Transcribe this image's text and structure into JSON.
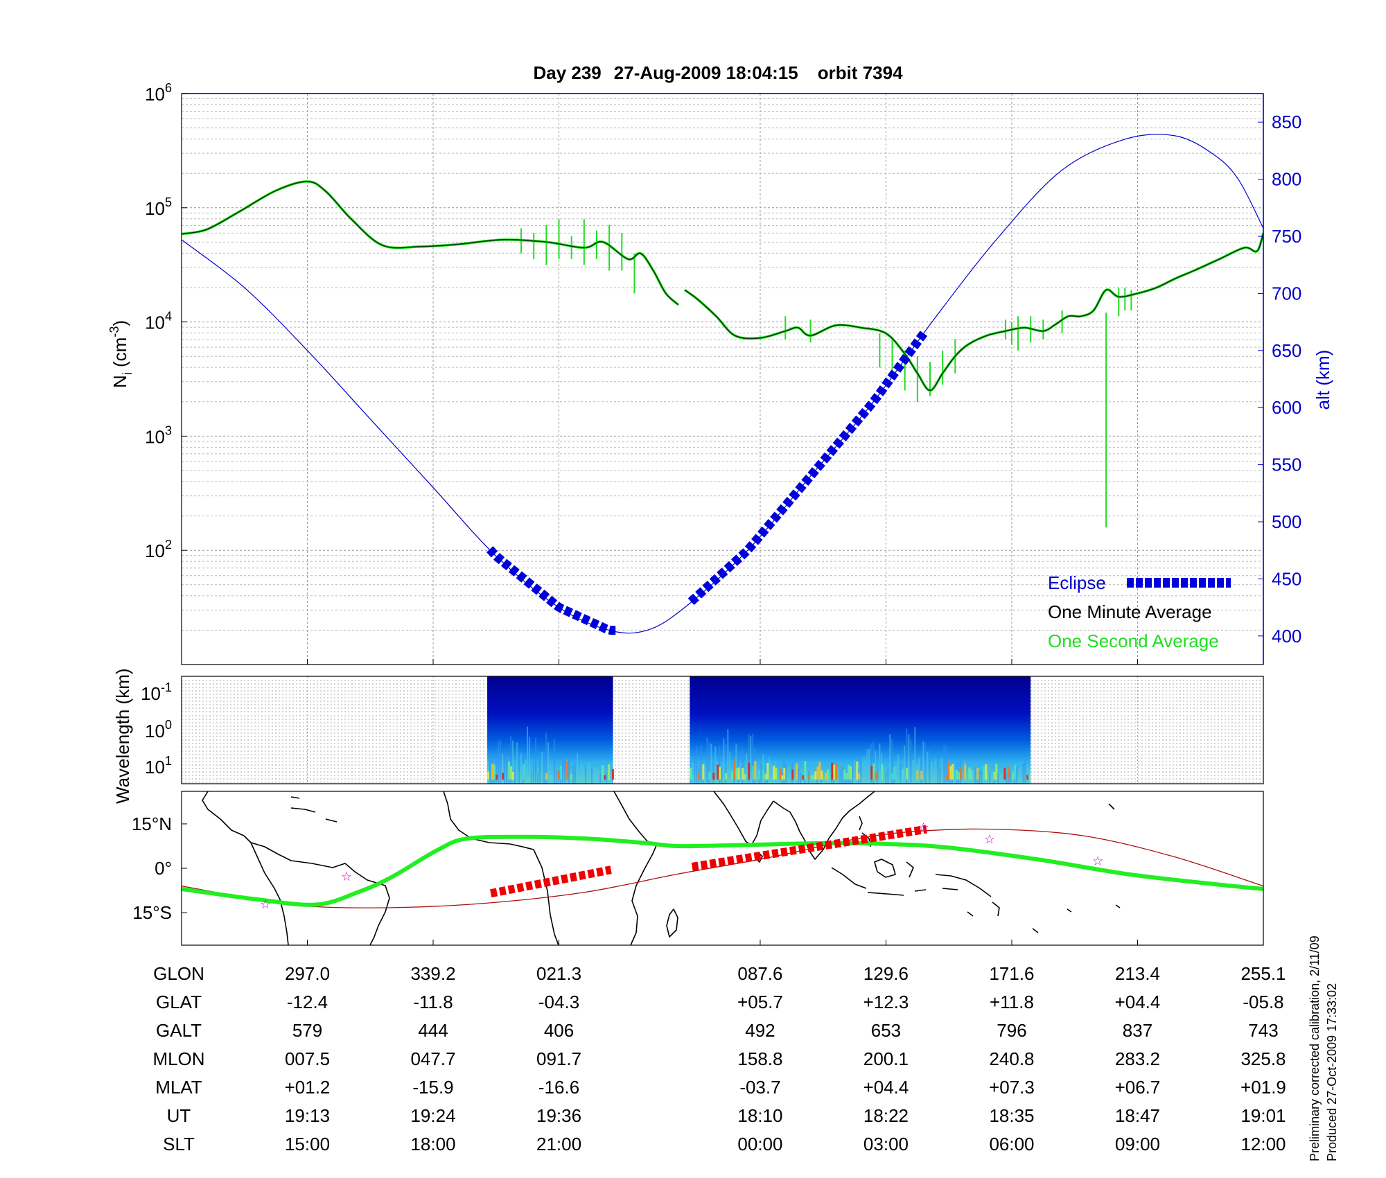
{
  "header": {
    "day": "Day 239",
    "datetime": "27-Aug-2009 18:04:15",
    "orbit": "orbit 7394"
  },
  "colors": {
    "altitude": "#0000cc",
    "one_minute": "#004000",
    "one_second": "#22dd22",
    "eclipse": "#0000dd",
    "track_green": "#22ee22",
    "track_red": "#ee0000",
    "ground_track": "#aa1111",
    "marker": "#cc00cc"
  },
  "chart_data": [
    {
      "id": "density",
      "type": "line",
      "ylabel_main": "N",
      "ylabel_sub": "i",
      "ylabel_unit_pre": " (cm",
      "ylabel_unit_sup": "-3",
      "ylabel_unit_post": ")",
      "yscale": "log",
      "ylim_log10": [
        1,
        6
      ],
      "yticks": [
        {
          "base": "10",
          "exp": "6",
          "log": 6
        },
        {
          "base": "10",
          "exp": "5",
          "log": 5
        },
        {
          "base": "10",
          "exp": "4",
          "log": 4
        },
        {
          "base": "10",
          "exp": "3",
          "log": 3
        },
        {
          "base": "10",
          "exp": "2",
          "log": 2
        }
      ],
      "x_domain": [
        0,
        8.6
      ],
      "y2label": "alt (km)",
      "y2lim": [
        375,
        875
      ],
      "y2ticks": [
        850,
        800,
        750,
        700,
        650,
        600,
        550,
        500,
        450,
        400
      ],
      "legend": [
        "Eclipse",
        "One Minute Average",
        "One Second Average"
      ],
      "legend_position": "bottom-right",
      "one_minute_average": [
        {
          "segment": [
            [
              0.0,
              4.77
            ],
            [
              0.2,
              4.81
            ],
            [
              0.45,
              4.96
            ],
            [
              0.75,
              5.15
            ],
            [
              1.0,
              5.23
            ],
            [
              1.15,
              5.14
            ],
            [
              1.35,
              4.9
            ],
            [
              1.6,
              4.67
            ],
            [
              1.9,
              4.66
            ],
            [
              2.2,
              4.68
            ],
            [
              2.55,
              4.72
            ],
            [
              2.9,
              4.7
            ],
            [
              3.2,
              4.65
            ],
            [
              3.35,
              4.7
            ],
            [
              3.55,
              4.55
            ],
            [
              3.65,
              4.6
            ],
            [
              3.75,
              4.45
            ],
            [
              3.85,
              4.25
            ],
            [
              3.95,
              4.15
            ]
          ]
        },
        {
          "segment": [
            [
              4.0,
              4.28
            ],
            [
              4.1,
              4.2
            ],
            [
              4.25,
              4.05
            ],
            [
              4.4,
              3.88
            ],
            [
              4.6,
              3.86
            ],
            [
              4.8,
              3.92
            ],
            [
              4.9,
              3.95
            ],
            [
              5.0,
              3.88
            ],
            [
              5.2,
              3.97
            ],
            [
              5.4,
              3.95
            ],
            [
              5.6,
              3.9
            ],
            [
              5.75,
              3.72
            ],
            [
              5.85,
              3.55
            ],
            [
              5.95,
              3.4
            ],
            [
              6.05,
              3.55
            ],
            [
              6.15,
              3.7
            ],
            [
              6.25,
              3.8
            ],
            [
              6.4,
              3.88
            ],
            [
              6.55,
              3.92
            ],
            [
              6.7,
              3.95
            ],
            [
              6.85,
              3.92
            ],
            [
              6.95,
              3.98
            ],
            [
              7.05,
              4.05
            ],
            [
              7.15,
              4.05
            ],
            [
              7.25,
              4.1
            ],
            [
              7.35,
              4.28
            ],
            [
              7.45,
              4.22
            ],
            [
              7.6,
              4.25
            ],
            [
              7.75,
              4.3
            ],
            [
              7.9,
              4.38
            ],
            [
              8.05,
              4.45
            ],
            [
              8.25,
              4.55
            ],
            [
              8.45,
              4.65
            ],
            [
              8.55,
              4.62
            ],
            [
              8.6,
              4.78
            ]
          ]
        }
      ],
      "one_second_spikes": [
        {
          "x": 2.7,
          "lo": 4.6,
          "hi": 4.82
        },
        {
          "x": 2.8,
          "lo": 4.55,
          "hi": 4.78
        },
        {
          "x": 2.9,
          "lo": 4.5,
          "hi": 4.85
        },
        {
          "x": 3.0,
          "lo": 4.55,
          "hi": 4.9
        },
        {
          "x": 3.1,
          "lo": 4.55,
          "hi": 4.75
        },
        {
          "x": 3.2,
          "lo": 4.5,
          "hi": 4.9
        },
        {
          "x": 3.3,
          "lo": 4.55,
          "hi": 4.8
        },
        {
          "x": 3.4,
          "lo": 4.45,
          "hi": 4.85
        },
        {
          "x": 3.5,
          "lo": 4.45,
          "hi": 4.78
        },
        {
          "x": 3.6,
          "lo": 4.25,
          "hi": 4.6
        },
        {
          "x": 4.8,
          "lo": 3.85,
          "hi": 4.05
        },
        {
          "x": 5.0,
          "lo": 3.82,
          "hi": 4.02
        },
        {
          "x": 5.55,
          "lo": 3.6,
          "hi": 3.9
        },
        {
          "x": 5.65,
          "lo": 3.55,
          "hi": 3.85
        },
        {
          "x": 5.75,
          "lo": 3.4,
          "hi": 3.75
        },
        {
          "x": 5.85,
          "lo": 3.3,
          "hi": 3.7
        },
        {
          "x": 5.95,
          "lo": 3.35,
          "hi": 3.65
        },
        {
          "x": 6.05,
          "lo": 3.45,
          "hi": 3.75
        },
        {
          "x": 6.15,
          "lo": 3.55,
          "hi": 3.85
        },
        {
          "x": 6.55,
          "lo": 3.85,
          "hi": 4.02
        },
        {
          "x": 6.6,
          "lo": 3.8,
          "hi": 4.0
        },
        {
          "x": 6.65,
          "lo": 3.75,
          "hi": 4.05
        },
        {
          "x": 6.75,
          "lo": 3.82,
          "hi": 4.05
        },
        {
          "x": 6.85,
          "lo": 3.85,
          "hi": 4.02
        },
        {
          "x": 7.0,
          "lo": 3.9,
          "hi": 4.1
        },
        {
          "x": 7.45,
          "lo": 4.05,
          "hi": 4.3
        },
        {
          "x": 7.5,
          "lo": 4.1,
          "hi": 4.3
        },
        {
          "x": 7.55,
          "lo": 4.1,
          "hi": 4.28
        },
        {
          "x": 7.35,
          "lo": 2.2,
          "hi": 4.08
        }
      ],
      "altitude_km": [
        [
          0.0,
          747
        ],
        [
          0.5,
          705
        ],
        [
          1.0,
          650
        ],
        [
          1.5,
          590
        ],
        [
          2.0,
          530
        ],
        [
          2.5,
          470
        ],
        [
          3.0,
          425
        ],
        [
          3.4,
          405
        ],
        [
          3.7,
          405
        ],
        [
          4.0,
          425
        ],
        [
          4.5,
          475
        ],
        [
          5.0,
          540
        ],
        [
          5.5,
          605
        ],
        [
          6.0,
          680
        ],
        [
          6.5,
          750
        ],
        [
          7.0,
          808
        ],
        [
          7.5,
          835
        ],
        [
          7.9,
          838
        ],
        [
          8.2,
          822
        ],
        [
          8.4,
          800
        ],
        [
          8.6,
          757
        ]
      ],
      "eclipse_segments": [
        [
          2.45,
          3.45
        ],
        [
          4.05,
          5.9
        ]
      ]
    },
    {
      "id": "spectrogram",
      "type": "heatmap",
      "ylabel": "Wavelength (km)",
      "yticks": [
        {
          "base": "10",
          "exp": "-1"
        },
        {
          "base": "10",
          "exp": "0"
        },
        {
          "base": "10",
          "exp": "1"
        }
      ],
      "x_domain": [
        0,
        8.6
      ],
      "segments": [
        [
          2.43,
          3.43
        ],
        [
          4.04,
          6.75
        ]
      ],
      "colormap": "jet"
    },
    {
      "id": "track_map",
      "type": "map",
      "lat_ticks": [
        "15°N",
        "0°",
        "15°S"
      ],
      "lon_domain": [
        255.1,
        615.1
      ],
      "lat_domain": [
        -26,
        26
      ],
      "orbit_track": [
        [
          255.1,
          -7
        ],
        [
          280,
          -10.5
        ],
        [
          300,
          -12.3
        ],
        [
          314,
          -8
        ],
        [
          325,
          -3
        ],
        [
          340,
          6
        ],
        [
          350,
          10
        ],
        [
          370,
          10.6
        ],
        [
          390,
          10
        ],
        [
          410,
          8.5
        ],
        [
          420,
          7.5
        ],
        [
          440,
          7.8
        ],
        [
          470,
          8.5
        ],
        [
          490,
          8.2
        ],
        [
          510,
          7
        ],
        [
          540,
          3
        ],
        [
          570,
          -2
        ],
        [
          600,
          -5.5
        ],
        [
          615.1,
          -7
        ]
      ],
      "magnetic_equator": [
        [
          255.1,
          -6
        ],
        [
          280,
          -10.5
        ],
        [
          300,
          -13
        ],
        [
          330,
          -13.2
        ],
        [
          360,
          -11.5
        ],
        [
          390,
          -8
        ],
        [
          420,
          -2
        ],
        [
          450,
          3.5
        ],
        [
          480,
          10
        ],
        [
          500,
          12.5
        ],
        [
          525,
          13.2
        ],
        [
          555,
          11
        ],
        [
          585,
          4
        ],
        [
          615.1,
          -6
        ]
      ],
      "eclipse_segments": [
        [
          358,
          -8.5,
          398,
          -0.5
        ],
        [
          425,
          0.5,
          503,
          13.2
        ]
      ],
      "markers": [
        [
          283,
          -12.2
        ],
        [
          310,
          -2.8
        ],
        [
          502,
          13.8
        ],
        [
          524,
          9.8
        ],
        [
          560,
          2.5
        ]
      ]
    }
  ],
  "table": {
    "rows": [
      {
        "label": "GLON",
        "values": [
          "297.0",
          "339.2",
          "021.3",
          "087.6",
          "129.6",
          "171.6",
          "213.4",
          "255.1"
        ]
      },
      {
        "label": "GLAT",
        "values": [
          "-12.4",
          "-11.8",
          "-04.3",
          "+05.7",
          "+12.3",
          "+11.8",
          "+04.4",
          "-05.8"
        ]
      },
      {
        "label": "GALT",
        "values": [
          "579",
          "444",
          "406",
          "492",
          "653",
          "796",
          "837",
          "743"
        ]
      },
      {
        "label": "MLON",
        "values": [
          "007.5",
          "047.7",
          "091.7",
          "158.8",
          "200.1",
          "240.8",
          "283.2",
          "325.8"
        ]
      },
      {
        "label": "MLAT",
        "values": [
          "+01.2",
          "-15.9",
          "-16.6",
          "-03.7",
          "+04.4",
          "+07.3",
          "+06.7",
          "+01.9"
        ]
      },
      {
        "label": "UT",
        "values": [
          "19:13",
          "19:24",
          "19:36",
          "18:10",
          "18:22",
          "18:35",
          "18:47",
          "19:01"
        ]
      },
      {
        "label": "SLT",
        "values": [
          "15:00",
          "18:00",
          "21:00",
          "00:00",
          "03:00",
          "06:00",
          "09:00",
          "12:00"
        ]
      }
    ]
  },
  "footer_notes": [
    "Preliminary corrected calibration, 2/11/09",
    "Produced 27-Oct-2009 17:33:02"
  ]
}
